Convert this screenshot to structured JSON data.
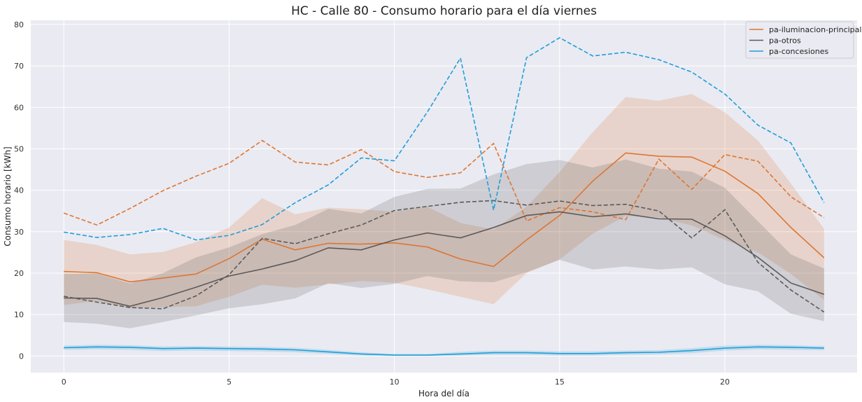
{
  "chart_data": {
    "type": "line",
    "title": "HC - Calle 80 - Consumo horario para el día viernes",
    "xlabel": "Hora del día",
    "ylabel": "Consumo horario [kWh]",
    "xlim": [
      -1,
      24
    ],
    "ylim": [
      -4,
      81
    ],
    "x_ticks": [
      0,
      5,
      10,
      15,
      20
    ],
    "y_ticks": [
      0,
      10,
      20,
      30,
      40,
      50,
      60,
      70,
      80
    ],
    "grid": true,
    "background": "#eaeaf2",
    "legend_position": "top-right",
    "x": [
      0,
      1,
      2,
      3,
      4,
      5,
      6,
      7,
      8,
      9,
      10,
      11,
      12,
      13,
      14,
      15,
      16,
      17,
      18,
      19,
      20,
      21,
      22,
      23
    ],
    "series": [
      {
        "name": "pa-iluminacion-principal",
        "color": "#dd7633",
        "mean": [
          20.4,
          20.1,
          17.9,
          18.8,
          19.8,
          23.5,
          28.2,
          25.6,
          27.2,
          27.0,
          27.3,
          26.3,
          23.4,
          21.6,
          28.0,
          33.9,
          42.2,
          49.0,
          48.2,
          48.0,
          44.6,
          39.2,
          31.0,
          23.7
        ],
        "band_low": [
          12.3,
          13.3,
          11.5,
          11.8,
          12.0,
          14.3,
          17.2,
          16.5,
          17.3,
          18.1,
          17.7,
          16.1,
          14.3,
          12.5,
          20.0,
          23.3,
          29.5,
          33.8,
          33.4,
          31.5,
          28.0,
          25.0,
          19.8,
          13.5
        ],
        "band_high": [
          28.0,
          26.8,
          24.5,
          25.1,
          27.5,
          31.0,
          38.1,
          34.2,
          35.8,
          35.4,
          34.8,
          36.0,
          32.1,
          30.5,
          36.0,
          44.4,
          54.0,
          62.5,
          61.6,
          63.2,
          58.8,
          52.0,
          41.6,
          30.7
        ],
        "max": [
          34.5,
          31.6,
          35.6,
          39.9,
          43.4,
          46.5,
          52.0,
          46.8,
          46.1,
          49.8,
          44.5,
          43.1,
          44.2,
          51.3,
          32.6,
          35.8,
          34.8,
          32.9,
          47.5,
          40.2,
          48.6,
          47.0,
          38.4,
          33.4
        ]
      },
      {
        "name": "pa-otros",
        "color": "#5a5a5a",
        "mean": [
          14.0,
          13.9,
          12.0,
          14.1,
          16.6,
          19.3,
          21.0,
          23.0,
          26.1,
          25.6,
          28.0,
          29.7,
          28.5,
          31.0,
          33.9,
          34.8,
          33.6,
          34.3,
          33.1,
          33.0,
          29.0,
          23.8,
          17.6,
          14.9
        ],
        "band_low": [
          8.2,
          7.8,
          6.7,
          8.2,
          9.8,
          11.5,
          12.5,
          13.9,
          17.6,
          16.4,
          17.4,
          19.3,
          18.0,
          17.8,
          20.2,
          23.2,
          20.9,
          21.6,
          20.9,
          21.4,
          17.3,
          15.6,
          10.2,
          8.4
        ],
        "band_high": [
          19.8,
          19.9,
          17.5,
          20.0,
          23.8,
          26.2,
          29.4,
          31.6,
          35.5,
          34.4,
          38.4,
          40.3,
          40.4,
          43.8,
          46.3,
          47.3,
          45.5,
          47.4,
          45.2,
          44.5,
          40.6,
          32.5,
          24.5,
          21.1
        ],
        "max": [
          14.4,
          13.0,
          11.7,
          11.4,
          14.5,
          19.6,
          28.4,
          27.1,
          29.5,
          31.6,
          35.1,
          36.1,
          37.1,
          37.5,
          36.4,
          37.4,
          36.3,
          36.6,
          35.0,
          28.5,
          35.3,
          22.6,
          15.9,
          10.6
        ]
      },
      {
        "name": "pa-concesiones",
        "color": "#1f9fd8",
        "mean": [
          2.0,
          2.2,
          2.1,
          1.8,
          1.9,
          1.8,
          1.7,
          1.5,
          1.0,
          0.5,
          0.2,
          0.2,
          0.5,
          0.8,
          0.8,
          0.6,
          0.6,
          0.8,
          0.9,
          1.3,
          1.9,
          2.2,
          2.1,
          1.9
        ],
        "band_low": [
          1.5,
          1.6,
          1.5,
          1.2,
          1.3,
          1.2,
          1.1,
          0.9,
          0.5,
          0.1,
          0.0,
          0.0,
          0.1,
          0.3,
          0.3,
          0.1,
          0.1,
          0.3,
          0.4,
          0.7,
          1.3,
          1.6,
          1.5,
          1.4
        ],
        "band_high": [
          2.5,
          2.7,
          2.6,
          2.3,
          2.4,
          2.3,
          2.2,
          2.0,
          1.5,
          0.9,
          0.5,
          0.5,
          1.0,
          1.3,
          1.3,
          1.1,
          1.1,
          1.3,
          1.4,
          1.9,
          2.5,
          2.7,
          2.6,
          2.4
        ],
        "max": [
          29.9,
          28.6,
          29.3,
          30.8,
          28.0,
          29.1,
          31.7,
          37.0,
          41.3,
          47.8,
          47.1,
          58.9,
          71.9,
          35.2,
          72.0,
          76.8,
          72.4,
          73.3,
          71.5,
          68.5,
          63.2,
          55.7,
          51.4,
          37.0
        ]
      }
    ]
  }
}
